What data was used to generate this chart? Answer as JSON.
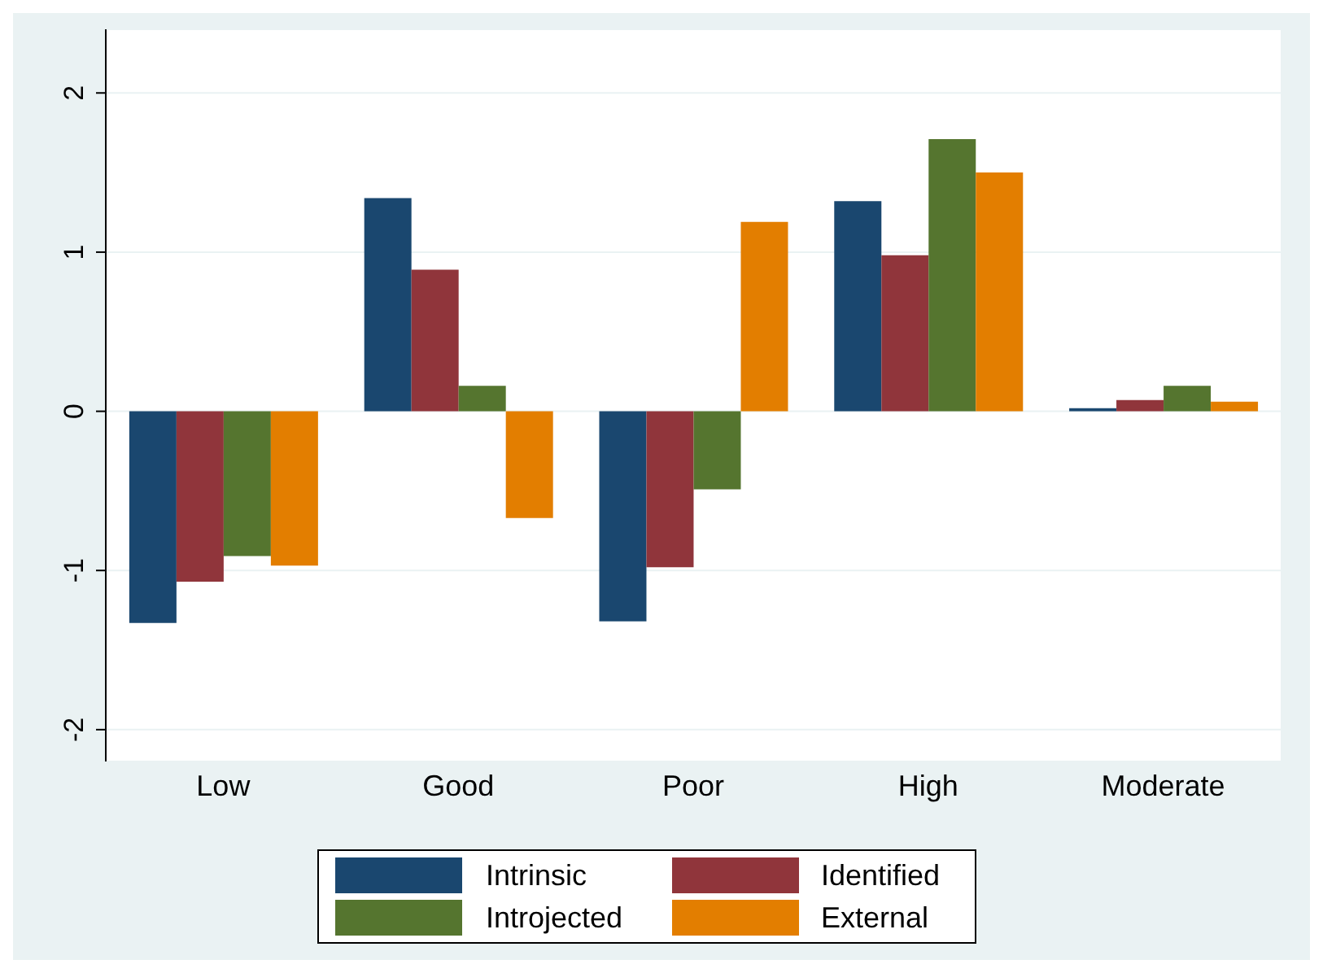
{
  "chart_data": {
    "type": "bar",
    "categories": [
      "Low",
      "Good",
      "Poor",
      "High",
      "Moderate"
    ],
    "series": [
      {
        "name": "Intrinsic",
        "color": "#1a476f",
        "values": [
          -1.33,
          1.34,
          -1.32,
          1.32,
          0.02
        ]
      },
      {
        "name": "Identified",
        "color": "#90353b",
        "values": [
          -1.07,
          0.89,
          -0.98,
          0.98,
          0.07
        ]
      },
      {
        "name": "Introjected",
        "color": "#55752f",
        "values": [
          -0.91,
          0.16,
          -0.49,
          1.71,
          0.16
        ]
      },
      {
        "name": "External",
        "color": "#e37e00",
        "values": [
          -0.97,
          -0.67,
          1.19,
          1.5,
          0.06
        ]
      }
    ],
    "ylim": [
      -2.2,
      2.4
    ],
    "yticks": [
      -2,
      -1,
      0,
      1,
      2
    ],
    "grid": "y",
    "legend": "bottom"
  }
}
